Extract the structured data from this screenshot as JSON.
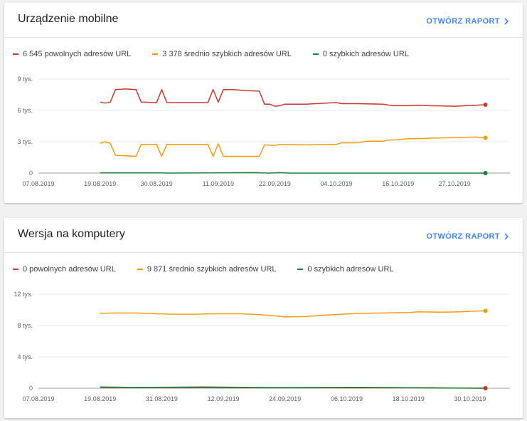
{
  "chart_data": [
    {
      "type": "line",
      "title": "Urządzenie mobilne",
      "report_label": "OTWÓRZ RAPORT",
      "yticks": [
        {
          "value": 0,
          "label": "0"
        },
        {
          "value": 3000,
          "label": "3 tys."
        },
        {
          "value": 6000,
          "label": "6 tys."
        },
        {
          "value": 9000,
          "label": "9 tys."
        }
      ],
      "ylim": [
        0,
        9000
      ],
      "xlim": [
        "2019-08-07",
        "2019-11-04"
      ],
      "xticks": [
        {
          "date": "2019-08-07",
          "label": "07.08.2019"
        },
        {
          "date": "2019-08-19",
          "label": "19.08.2019"
        },
        {
          "date": "2019-08-30",
          "label": "30.08.2019"
        },
        {
          "date": "2019-09-11",
          "label": "11.09.2019"
        },
        {
          "date": "2019-09-22",
          "label": "22.09.2019"
        },
        {
          "date": "2019-10-04",
          "label": "04.10.2019"
        },
        {
          "date": "2019-10-16",
          "label": "16.10.2019"
        },
        {
          "date": "2019-10-27",
          "label": "27.10.2019"
        }
      ],
      "grid": true,
      "legend_position": "top",
      "series": [
        {
          "name": "6 545 powolnych adresów URL",
          "color": "#c5392f",
          "points": [
            [
              "2019-08-19",
              6800
            ],
            [
              "2019-08-20",
              6700
            ],
            [
              "2019-08-21",
              6800
            ],
            [
              "2019-08-22",
              8000
            ],
            [
              "2019-08-24",
              8050
            ],
            [
              "2019-08-26",
              8000
            ],
            [
              "2019-08-27",
              6800
            ],
            [
              "2019-08-30",
              6750
            ],
            [
              "2019-08-31",
              8000
            ],
            [
              "2019-09-01",
              6750
            ],
            [
              "2019-09-05",
              6750
            ],
            [
              "2019-09-09",
              6750
            ],
            [
              "2019-09-10",
              8000
            ],
            [
              "2019-09-11",
              6800
            ],
            [
              "2019-09-12",
              8000
            ],
            [
              "2019-09-14",
              8000
            ],
            [
              "2019-09-16",
              7900
            ],
            [
              "2019-09-19",
              7850
            ],
            [
              "2019-09-20",
              6600
            ],
            [
              "2019-09-21",
              6600
            ],
            [
              "2019-09-22",
              6400
            ],
            [
              "2019-09-23",
              6450
            ],
            [
              "2019-09-24",
              6600
            ],
            [
              "2019-09-28",
              6600
            ],
            [
              "2019-10-02",
              6700
            ],
            [
              "2019-10-04",
              6750
            ],
            [
              "2019-10-05",
              6650
            ],
            [
              "2019-10-08",
              6650
            ],
            [
              "2019-10-13",
              6600
            ],
            [
              "2019-10-15",
              6450
            ],
            [
              "2019-10-18",
              6450
            ],
            [
              "2019-10-20",
              6500
            ],
            [
              "2019-10-22",
              6450
            ],
            [
              "2019-10-27",
              6400
            ],
            [
              "2019-10-31",
              6500
            ],
            [
              "2019-11-02",
              6545
            ]
          ]
        },
        {
          "name": "3 378 średnio szybkich adresów URL",
          "color": "#f29d10",
          "points": [
            [
              "2019-08-19",
              2850
            ],
            [
              "2019-08-20",
              3000
            ],
            [
              "2019-08-21",
              2850
            ],
            [
              "2019-08-22",
              1700
            ],
            [
              "2019-08-24",
              1650
            ],
            [
              "2019-08-26",
              1600
            ],
            [
              "2019-08-27",
              2750
            ],
            [
              "2019-08-30",
              2750
            ],
            [
              "2019-08-31",
              1600
            ],
            [
              "2019-09-01",
              2750
            ],
            [
              "2019-09-05",
              2750
            ],
            [
              "2019-09-09",
              2750
            ],
            [
              "2019-09-10",
              1600
            ],
            [
              "2019-09-11",
              2800
            ],
            [
              "2019-09-12",
              1600
            ],
            [
              "2019-09-14",
              1600
            ],
            [
              "2019-09-19",
              1600
            ],
            [
              "2019-09-20",
              2700
            ],
            [
              "2019-09-22",
              2650
            ],
            [
              "2019-09-23",
              2750
            ],
            [
              "2019-09-28",
              2700
            ],
            [
              "2019-10-02",
              2750
            ],
            [
              "2019-10-04",
              2750
            ],
            [
              "2019-10-05",
              2900
            ],
            [
              "2019-10-08",
              2900
            ],
            [
              "2019-10-10",
              3050
            ],
            [
              "2019-10-13",
              3050
            ],
            [
              "2019-10-14",
              3150
            ],
            [
              "2019-10-16",
              3200
            ],
            [
              "2019-10-18",
              3300
            ],
            [
              "2019-10-20",
              3300
            ],
            [
              "2019-10-23",
              3350
            ],
            [
              "2019-10-27",
              3400
            ],
            [
              "2019-10-31",
              3450
            ],
            [
              "2019-11-02",
              3378
            ]
          ]
        },
        {
          "name": "0 szybkich adresów URL",
          "color": "#188038",
          "points": [
            [
              "2019-08-19",
              30
            ],
            [
              "2019-08-30",
              30
            ],
            [
              "2019-09-02",
              0
            ],
            [
              "2019-09-18",
              50
            ],
            [
              "2019-09-21",
              0
            ],
            [
              "2019-09-23",
              50
            ],
            [
              "2019-09-25",
              0
            ],
            [
              "2019-11-02",
              0
            ]
          ]
        }
      ]
    },
    {
      "type": "line",
      "title": "Wersja na komputery",
      "report_label": "OTWÓRZ RAPORT",
      "yticks": [
        {
          "value": 0,
          "label": "0"
        },
        {
          "value": 4000,
          "label": "4 tys."
        },
        {
          "value": 8000,
          "label": "8 tys."
        },
        {
          "value": 12000,
          "label": "12 tys."
        }
      ],
      "ylim": [
        0,
        12000
      ],
      "xlim": [
        "2019-08-07",
        "2019-11-04"
      ],
      "xticks": [
        {
          "date": "2019-08-07",
          "label": "07.08.2019"
        },
        {
          "date": "2019-08-19",
          "label": "19.08.2019"
        },
        {
          "date": "2019-08-31",
          "label": "31.08.2019"
        },
        {
          "date": "2019-09-12",
          "label": "12.09.2019"
        },
        {
          "date": "2019-09-24",
          "label": "24.09.2019"
        },
        {
          "date": "2019-10-06",
          "label": "06.10.2019"
        },
        {
          "date": "2019-10-18",
          "label": "18.10.2019"
        },
        {
          "date": "2019-10-30",
          "label": "30.10.2019"
        }
      ],
      "grid": true,
      "legend_position": "top",
      "series": [
        {
          "name": "0 powolnych adresów URL",
          "color": "#c5392f",
          "points": [
            [
              "2019-08-19",
              100
            ],
            [
              "2019-09-15",
              80
            ],
            [
              "2019-10-20",
              60
            ],
            [
              "2019-11-02",
              0
            ]
          ]
        },
        {
          "name": "9 871 średnio szybkich adresów URL",
          "color": "#f29d10",
          "points": [
            [
              "2019-08-19",
              9550
            ],
            [
              "2019-08-22",
              9600
            ],
            [
              "2019-08-26",
              9600
            ],
            [
              "2019-08-30",
              9500
            ],
            [
              "2019-09-02",
              9450
            ],
            [
              "2019-09-06",
              9450
            ],
            [
              "2019-09-10",
              9500
            ],
            [
              "2019-09-15",
              9500
            ],
            [
              "2019-09-19",
              9400
            ],
            [
              "2019-09-21",
              9300
            ],
            [
              "2019-09-24",
              9100
            ],
            [
              "2019-09-28",
              9150
            ],
            [
              "2019-10-01",
              9300
            ],
            [
              "2019-10-05",
              9450
            ],
            [
              "2019-10-09",
              9550
            ],
            [
              "2019-10-13",
              9600
            ],
            [
              "2019-10-18",
              9650
            ],
            [
              "2019-10-20",
              9750
            ],
            [
              "2019-10-24",
              9700
            ],
            [
              "2019-10-28",
              9750
            ],
            [
              "2019-10-31",
              9850
            ],
            [
              "2019-11-02",
              9871
            ]
          ]
        },
        {
          "name": "0 szybkich adresów URL",
          "color": "#188038",
          "points": [
            [
              "2019-08-19",
              150
            ],
            [
              "2019-08-26",
              100
            ],
            [
              "2019-09-08",
              150
            ],
            [
              "2019-09-22",
              80
            ],
            [
              "2019-10-08",
              120
            ],
            [
              "2019-10-16",
              80
            ],
            [
              "2019-10-25",
              30
            ],
            [
              "2019-11-02",
              0
            ]
          ]
        }
      ]
    }
  ]
}
